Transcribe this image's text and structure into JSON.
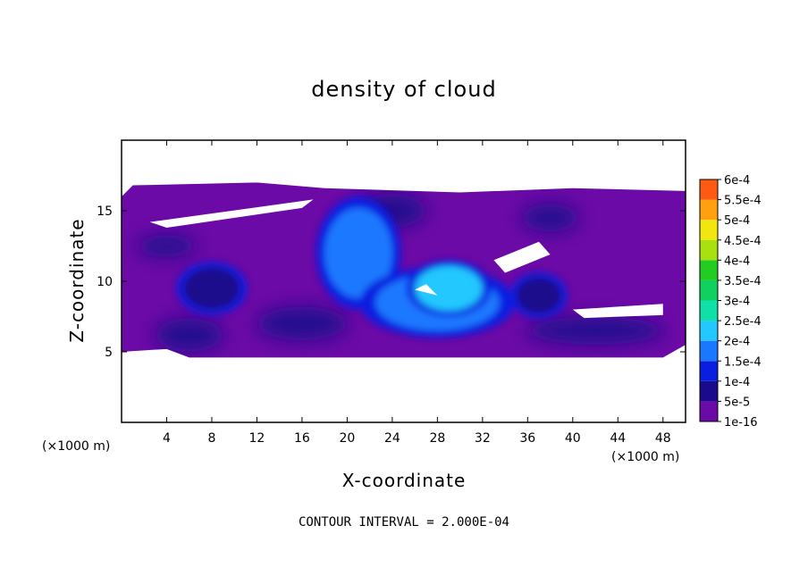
{
  "chart_data": {
    "type": "heatmap",
    "title": "density of cloud",
    "xlabel": "X-coordinate",
    "ylabel": "Z-coordinate",
    "x_unit_left": "(×1000 m)",
    "x_unit_right": "(×1000 m)",
    "footer": "CONTOUR INTERVAL = 2.000E-04",
    "xlim": [
      0,
      50
    ],
    "ylim": [
      0,
      20
    ],
    "x_ticks": [
      4,
      8,
      12,
      16,
      20,
      24,
      28,
      32,
      36,
      40,
      44,
      48
    ],
    "x_tick_labels": [
      "4",
      "8",
      "12",
      "16",
      "20",
      "24",
      "28",
      "32",
      "36",
      "40",
      "44",
      "48"
    ],
    "y_ticks": [
      5,
      10,
      15
    ],
    "y_tick_labels": [
      "5",
      "10",
      "15"
    ],
    "colorbar": {
      "levels": [
        "1e-16",
        "5e-5",
        "1e-4",
        "1.5e-4",
        "2e-4",
        "2.5e-4",
        "3e-4",
        "3.5e-4",
        "4e-4",
        "4.5e-4",
        "5e-4",
        "5.5e-4",
        "6e-4"
      ],
      "colors": [
        "#6b0aa6",
        "#1a0a8c",
        "#0a1ee0",
        "#1a78ff",
        "#22c8ff",
        "#10e0a8",
        "#10d060",
        "#22cc22",
        "#a8e010",
        "#f2e610",
        "#ffa010",
        "#ff5a14",
        "#ff2a2a",
        "#ff7878"
      ]
    },
    "cloud_region": {
      "x_range": [
        0,
        50
      ],
      "z_range": [
        4.5,
        17
      ]
    },
    "core_blobs": [
      {
        "x": 21,
        "z": 12,
        "rx": 3.0,
        "rz": 3.2,
        "level": "1.5e-4"
      },
      {
        "x": 28,
        "z": 8.5,
        "rx": 5.5,
        "rz": 2.0,
        "level": "1.5e-4"
      },
      {
        "x": 29,
        "z": 9.5,
        "rx": 3.0,
        "rz": 1.6,
        "level": "2e-4"
      },
      {
        "x": 8,
        "z": 9.5,
        "rx": 2.5,
        "rz": 1.5,
        "level": "5e-5"
      },
      {
        "x": 37,
        "z": 9,
        "rx": 2.0,
        "rz": 1.3,
        "level": "5e-5"
      }
    ]
  }
}
